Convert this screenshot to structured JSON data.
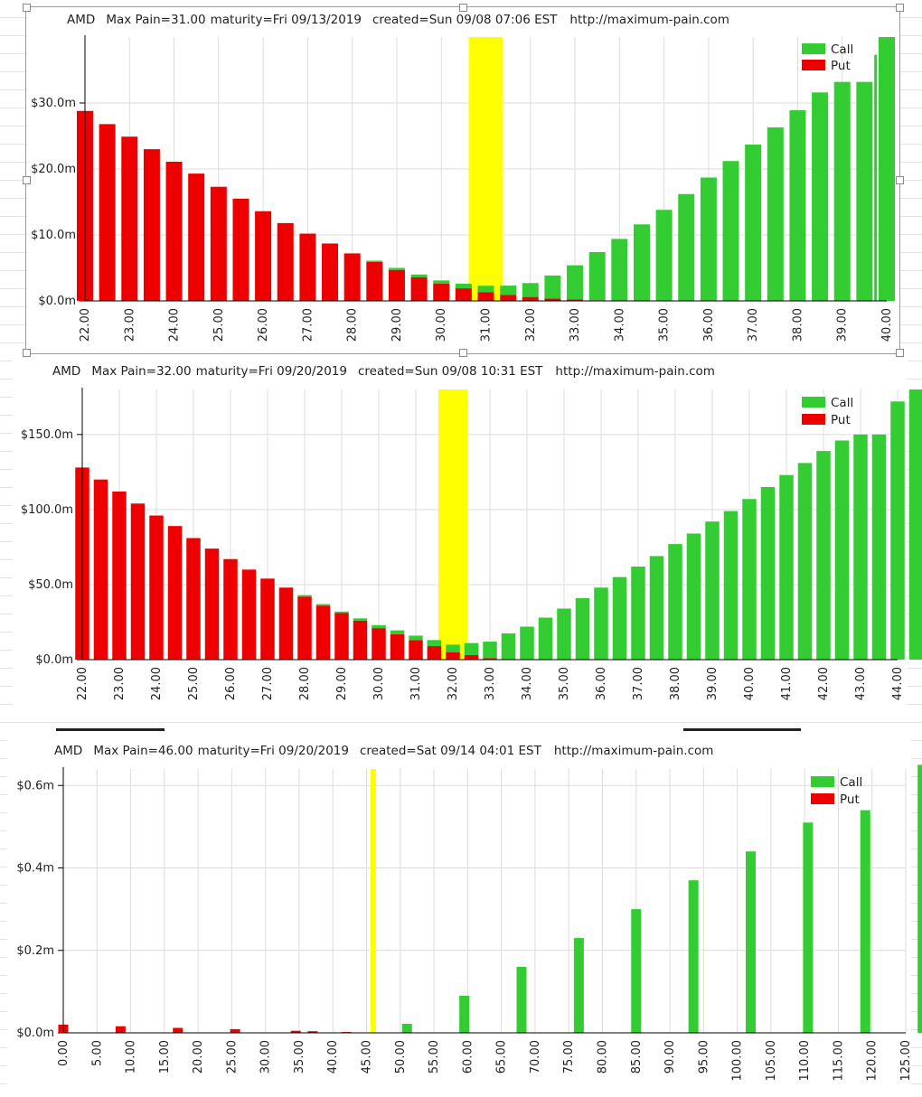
{
  "colors": {
    "call": "#33cc33",
    "put": "#ee0000",
    "max_pain": "#ffff00",
    "grid": "#dcdcdc",
    "axis": "#000000"
  },
  "chart_data": [
    {
      "type": "bar",
      "ticker": "AMD",
      "title_parts": {
        "ticker": "AMD",
        "max_pain": "Max Pain=31.00",
        "maturity": "maturity=Fri 09/13/2019",
        "created": "created=Sun 09/08 07:06 EST",
        "url": "http://maximum-pain.com"
      },
      "legend": {
        "call": "Call",
        "put": "Put"
      },
      "max_pain_strike": 31,
      "ylim": [
        0,
        40
      ],
      "yticks": [
        0,
        10,
        20,
        30
      ],
      "ytick_labels": [
        "$0.0m",
        "$10.0m",
        "$20.0m",
        "$30.0m"
      ],
      "categories": [
        "22.00",
        "22.50",
        "23.00",
        "23.50",
        "24.00",
        "24.50",
        "25.00",
        "25.50",
        "26.00",
        "26.50",
        "27.00",
        "27.50",
        "28.00",
        "28.50",
        "29.00",
        "29.50",
        "30.00",
        "30.50",
        "31.00",
        "31.50",
        "32.00",
        "32.50",
        "33.00",
        "33.50",
        "34.00",
        "34.50",
        "35.00",
        "35.50",
        "36.00",
        "36.50",
        "37.00",
        "37.50",
        "38.00",
        "38.50",
        "39.00",
        "39.50",
        "40.00"
      ],
      "strikes": [
        22,
        22.5,
        23,
        23.5,
        24,
        24.5,
        25,
        25.5,
        26,
        26.5,
        27,
        27.5,
        28,
        28.5,
        29,
        29.5,
        30,
        30.5,
        31,
        31.5,
        32,
        32.5,
        33,
        33.5,
        34,
        34.5,
        35,
        35.5,
        36,
        36.5,
        37,
        37.5,
        38,
        38.5,
        39,
        39.5,
        40
      ],
      "xtick_labels": [
        "22.00",
        "23.00",
        "24.00",
        "25.00",
        "26.00",
        "27.00",
        "28.00",
        "29.00",
        "30.00",
        "31.00",
        "32.00",
        "33.00",
        "34.00",
        "35.00",
        "36.00",
        "37.00",
        "38.00",
        "39.00",
        "40.00"
      ],
      "xticks": [
        22,
        23,
        24,
        25,
        26,
        27,
        28,
        29,
        30,
        31,
        32,
        33,
        34,
        35,
        36,
        37,
        38,
        39,
        40
      ],
      "series": [
        {
          "name": "Put",
          "values": [
            28.8,
            26.8,
            24.9,
            23.0,
            21.1,
            19.3,
            17.3,
            15.5,
            13.6,
            11.8,
            10.2,
            8.7,
            7.2,
            5.9,
            4.7,
            3.6,
            2.6,
            1.9,
            1.3,
            0.9,
            0.6,
            0.35,
            0.2,
            0.1,
            0,
            0,
            0,
            0,
            0,
            0,
            0,
            0,
            0,
            0,
            0,
            0,
            0
          ]
        },
        {
          "name": "Call",
          "values": [
            0,
            0,
            0,
            0,
            0,
            0,
            0,
            0,
            0,
            0,
            0,
            0,
            0,
            0.2,
            0.3,
            0.4,
            0.5,
            0.7,
            1.0,
            1.4,
            2.1,
            3.5,
            5.2,
            7.3,
            9.4,
            11.6,
            13.8,
            16.2,
            18.7,
            21.2,
            23.7,
            26.3,
            28.9,
            31.6,
            33.2,
            33.2,
            40.0
          ]
        }
      ],
      "extra_call_spike": {
        "strike": 39.75,
        "value": 37.3
      }
    },
    {
      "type": "bar",
      "ticker": "AMD",
      "title_parts": {
        "ticker": "AMD",
        "max_pain": "Max Pain=32.00",
        "maturity": "maturity=Fri 09/20/2019",
        "created": "created=Sun 09/08 10:31 EST",
        "url": "http://maximum-pain.com"
      },
      "legend": {
        "call": "Call",
        "put": "Put"
      },
      "max_pain_strike": 32,
      "ylim": [
        0,
        180
      ],
      "yticks": [
        0,
        50,
        100,
        150
      ],
      "ytick_labels": [
        "$0.0m",
        "$50.0m",
        "$100.0m",
        "$150.0m"
      ],
      "categories": [
        "22.00",
        "22.50",
        "23.00",
        "23.50",
        "24.00",
        "24.50",
        "25.00",
        "25.50",
        "26.00",
        "26.50",
        "27.00",
        "27.50",
        "28.00",
        "28.50",
        "29.00",
        "29.50",
        "30.00",
        "30.50",
        "31.00",
        "31.50",
        "32.00",
        "32.50",
        "33.00",
        "33.50",
        "34.00",
        "34.50",
        "35.00",
        "35.50",
        "36.00",
        "36.50",
        "37.00",
        "37.50",
        "38.00",
        "38.50",
        "39.00",
        "39.50",
        "40.00",
        "40.50",
        "41.00",
        "41.50",
        "42.00",
        "42.50",
        "43.00",
        "43.50",
        "44.00",
        "44.50"
      ],
      "strikes": [
        22,
        22.5,
        23,
        23.5,
        24,
        24.5,
        25,
        25.5,
        26,
        26.5,
        27,
        27.5,
        28,
        28.5,
        29,
        29.5,
        30,
        30.5,
        31,
        31.5,
        32,
        32.5,
        33,
        33.5,
        34,
        34.5,
        35,
        35.5,
        36,
        36.5,
        37,
        37.5,
        38,
        38.5,
        39,
        39.5,
        40,
        40.5,
        41,
        41.5,
        42,
        42.5,
        43,
        43.5,
        44,
        44.5
      ],
      "xtick_labels": [
        "22.00",
        "23.00",
        "24.00",
        "25.00",
        "26.00",
        "27.00",
        "28.00",
        "29.00",
        "30.00",
        "31.00",
        "32.00",
        "33.00",
        "34.00",
        "35.00",
        "36.00",
        "37.00",
        "38.00",
        "39.00",
        "40.00",
        "41.00",
        "42.00",
        "43.00",
        "44.00"
      ],
      "xticks": [
        22,
        23,
        24,
        25,
        26,
        27,
        28,
        29,
        30,
        31,
        32,
        33,
        34,
        35,
        36,
        37,
        38,
        39,
        40,
        41,
        42,
        43,
        44
      ],
      "series": [
        {
          "name": "Put",
          "values": [
            128,
            120,
            112,
            104,
            96,
            89,
            81,
            74,
            67,
            60,
            54,
            48,
            42,
            36,
            31,
            26,
            21,
            17,
            13,
            9,
            5,
            3,
            1,
            0.5,
            0,
            0,
            0,
            0,
            0,
            0,
            0,
            0,
            0,
            0,
            0,
            0,
            0,
            0,
            0,
            0,
            0,
            0,
            0,
            0,
            0,
            0
          ]
        },
        {
          "name": "Call",
          "values": [
            0,
            0,
            0,
            0,
            0,
            0,
            0,
            0,
            0,
            0,
            0,
            0,
            1,
            1,
            1,
            1.5,
            2,
            2.5,
            3,
            4,
            5,
            8,
            11,
            17,
            22,
            28,
            34,
            41,
            48,
            55,
            62,
            69,
            77,
            84,
            92,
            99,
            107,
            115,
            123,
            131,
            139,
            146,
            150,
            150,
            172,
            180
          ]
        }
      ]
    },
    {
      "type": "bar",
      "ticker": "AMD",
      "title_parts": {
        "ticker": "AMD",
        "max_pain": "Max Pain=46.00",
        "maturity": "maturity=Fri 09/20/2019",
        "created": "created=Sat 09/14 04:01 EST",
        "url": "http://maximum-pain.com"
      },
      "legend": {
        "call": "Call",
        "put": "Put"
      },
      "max_pain_strike": 46,
      "ylim": [
        0,
        0.64
      ],
      "yticks": [
        0,
        0.2,
        0.4,
        0.6
      ],
      "ytick_labels": [
        "$0.0m",
        "$0.2m",
        "$0.4m",
        "$0.6m"
      ],
      "categories": [
        "0.00",
        "8.50",
        "17.00",
        "25.50",
        "34.50",
        "37.00",
        "42.00",
        "46.00",
        "51.00",
        "59.50",
        "68.00",
        "76.50",
        "85.00",
        "93.50",
        "102.00",
        "110.50",
        "119.00",
        "127.50"
      ],
      "strikes": [
        0,
        8.5,
        17,
        25.5,
        34.5,
        37,
        42,
        46,
        51,
        59.5,
        68,
        76.5,
        85,
        93.5,
        102,
        110.5,
        119,
        127.5
      ],
      "xtick_labels": [
        "0.00",
        "5.00",
        "10.00",
        "15.00",
        "20.00",
        "25.00",
        "30.00",
        "35.00",
        "40.00",
        "45.00",
        "50.00",
        "55.00",
        "60.00",
        "65.00",
        "70.00",
        "75.00",
        "80.00",
        "85.00",
        "90.00",
        "95.00",
        "100.00",
        "105.00",
        "110.00",
        "115.00",
        "120.00",
        "125.00"
      ],
      "xticks": [
        0,
        5,
        10,
        15,
        20,
        25,
        30,
        35,
        40,
        45,
        50,
        55,
        60,
        65,
        70,
        75,
        80,
        85,
        90,
        95,
        100,
        105,
        110,
        115,
        120,
        125
      ],
      "series": [
        {
          "name": "Put",
          "values": [
            0.02,
            0.016,
            0.012,
            0.009,
            0.005,
            0.004,
            0.002,
            0,
            0,
            0,
            0,
            0,
            0,
            0,
            0,
            0,
            0,
            0
          ]
        },
        {
          "name": "Call",
          "values": [
            0,
            0,
            0,
            0,
            0,
            0,
            0,
            0,
            0.022,
            0.09,
            0.16,
            0.23,
            0.3,
            0.37,
            0.44,
            0.51,
            0.54,
            0.65
          ]
        }
      ]
    }
  ]
}
